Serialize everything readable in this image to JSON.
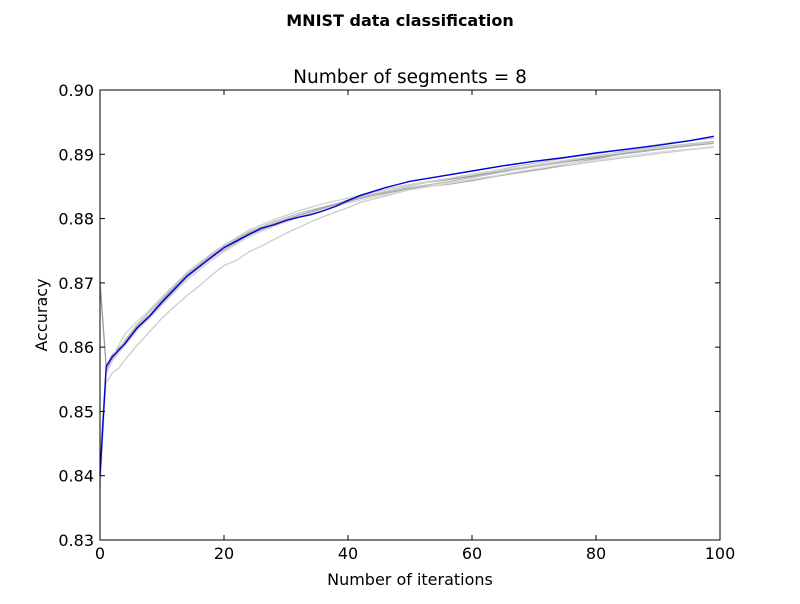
{
  "figure": {
    "suptitle": "MNIST data classification"
  },
  "chart_data": {
    "type": "line",
    "title": "Number of segments = 8",
    "xlabel": "Number of iterations",
    "ylabel": "Accuracy",
    "xlim": [
      0,
      100
    ],
    "ylim": [
      0.83,
      0.9
    ],
    "x_ticks": [
      0,
      20,
      40,
      60,
      80,
      100
    ],
    "y_ticks": [
      0.83,
      0.84,
      0.85,
      0.86,
      0.87,
      0.88,
      0.89,
      0.9
    ],
    "x_tick_labels": [
      "0",
      "20",
      "40",
      "60",
      "80",
      "100"
    ],
    "y_tick_labels": [
      "0.83",
      "0.84",
      "0.85",
      "0.86",
      "0.87",
      "0.88",
      "0.89",
      "0.90"
    ],
    "grid": false,
    "legend": "none",
    "series": [
      {
        "color": "#0000dd",
        "emphasis": "highlight",
        "points": [
          [
            0,
            0.84
          ],
          [
            1,
            0.857
          ],
          [
            2,
            0.8585
          ],
          [
            4,
            0.8605
          ],
          [
            6,
            0.863
          ],
          [
            8,
            0.8648
          ],
          [
            10,
            0.867
          ],
          [
            12,
            0.869
          ],
          [
            14,
            0.871
          ],
          [
            16,
            0.8725
          ],
          [
            18,
            0.874
          ],
          [
            20,
            0.8755
          ],
          [
            22,
            0.8765
          ],
          [
            24,
            0.8775
          ],
          [
            26,
            0.8785
          ],
          [
            28,
            0.879
          ],
          [
            30,
            0.8797
          ],
          [
            32,
            0.8802
          ],
          [
            34,
            0.8806
          ],
          [
            36,
            0.8812
          ],
          [
            38,
            0.8819
          ],
          [
            40,
            0.8828
          ],
          [
            42,
            0.8836
          ],
          [
            44,
            0.8842
          ],
          [
            46,
            0.8848
          ],
          [
            48,
            0.8853
          ],
          [
            50,
            0.8858
          ],
          [
            55,
            0.8866
          ],
          [
            60,
            0.8874
          ],
          [
            65,
            0.8882
          ],
          [
            70,
            0.8889
          ],
          [
            75,
            0.8895
          ],
          [
            80,
            0.8902
          ],
          [
            85,
            0.8908
          ],
          [
            90,
            0.8914
          ],
          [
            95,
            0.8921
          ],
          [
            99,
            0.8928
          ]
        ]
      },
      {
        "color": "#999999",
        "emphasis": "background",
        "points": [
          [
            0,
            0.87
          ],
          [
            1,
            0.857
          ],
          [
            2,
            0.8588
          ],
          [
            4,
            0.8608
          ],
          [
            6,
            0.8632
          ],
          [
            8,
            0.865
          ],
          [
            10,
            0.8672
          ],
          [
            12,
            0.8692
          ],
          [
            14,
            0.8712
          ],
          [
            16,
            0.8727
          ],
          [
            18,
            0.8742
          ],
          [
            20,
            0.8755
          ],
          [
            24,
            0.8777
          ],
          [
            28,
            0.8792
          ],
          [
            32,
            0.8805
          ],
          [
            36,
            0.8816
          ],
          [
            40,
            0.8829
          ],
          [
            44,
            0.8841
          ],
          [
            48,
            0.8849
          ],
          [
            50,
            0.8853
          ],
          [
            55,
            0.8859
          ],
          [
            60,
            0.8866
          ],
          [
            65,
            0.8874
          ],
          [
            70,
            0.8881
          ],
          [
            75,
            0.8888
          ],
          [
            80,
            0.8895
          ],
          [
            85,
            0.8902
          ],
          [
            90,
            0.8908
          ],
          [
            95,
            0.8914
          ],
          [
            99,
            0.8919
          ]
        ]
      },
      {
        "color": "#bbbbbb",
        "emphasis": "background",
        "points": [
          [
            0,
            0.84
          ],
          [
            1,
            0.856
          ],
          [
            2,
            0.858
          ],
          [
            4,
            0.861
          ],
          [
            6,
            0.8635
          ],
          [
            8,
            0.8655
          ],
          [
            10,
            0.8675
          ],
          [
            12,
            0.8695
          ],
          [
            14,
            0.8715
          ],
          [
            16,
            0.873
          ],
          [
            18,
            0.8745
          ],
          [
            20,
            0.8758
          ],
          [
            24,
            0.8779
          ],
          [
            28,
            0.8795
          ],
          [
            32,
            0.8808
          ],
          [
            36,
            0.8818
          ],
          [
            40,
            0.8828
          ],
          [
            44,
            0.8837
          ],
          [
            48,
            0.8845
          ],
          [
            52,
            0.8851
          ],
          [
            56,
            0.8857
          ],
          [
            60,
            0.8864
          ],
          [
            64,
            0.8871
          ],
          [
            68,
            0.8878
          ],
          [
            72,
            0.8884
          ],
          [
            76,
            0.8891
          ],
          [
            80,
            0.8897
          ],
          [
            84,
            0.8904
          ],
          [
            88,
            0.8909
          ],
          [
            92,
            0.8913
          ],
          [
            96,
            0.8917
          ],
          [
            99,
            0.892
          ]
        ]
      },
      {
        "color": "#cccccc",
        "emphasis": "background",
        "points": [
          [
            0,
            0.842
          ],
          [
            1,
            0.8545
          ],
          [
            2,
            0.856
          ],
          [
            3,
            0.8567
          ],
          [
            4,
            0.858
          ],
          [
            6,
            0.8603
          ],
          [
            8,
            0.8624
          ],
          [
            10,
            0.8645
          ],
          [
            12,
            0.8663
          ],
          [
            14,
            0.868
          ],
          [
            16,
            0.8695
          ],
          [
            18,
            0.8712
          ],
          [
            20,
            0.8727
          ],
          [
            22,
            0.8735
          ],
          [
            24,
            0.8748
          ],
          [
            26,
            0.8757
          ],
          [
            28,
            0.8767
          ],
          [
            30,
            0.8777
          ],
          [
            32,
            0.8786
          ],
          [
            34,
            0.8795
          ],
          [
            36,
            0.8803
          ],
          [
            38,
            0.881
          ],
          [
            40,
            0.8817
          ],
          [
            42,
            0.8825
          ],
          [
            44,
            0.883
          ],
          [
            46,
            0.8835
          ],
          [
            48,
            0.884
          ],
          [
            50,
            0.8845
          ],
          [
            55,
            0.8853
          ],
          [
            60,
            0.8861
          ],
          [
            65,
            0.8868
          ],
          [
            70,
            0.8875
          ],
          [
            75,
            0.8882
          ],
          [
            80,
            0.8889
          ],
          [
            85,
            0.8895
          ],
          [
            90,
            0.8901
          ],
          [
            95,
            0.8907
          ],
          [
            99,
            0.8911
          ]
        ]
      },
      {
        "color": "#c4c4c4",
        "emphasis": "background",
        "points": [
          [
            0,
            0.838
          ],
          [
            1,
            0.856
          ],
          [
            2,
            0.8582
          ],
          [
            4,
            0.8604
          ],
          [
            6,
            0.8628
          ],
          [
            8,
            0.8646
          ],
          [
            10,
            0.8666
          ],
          [
            12,
            0.8686
          ],
          [
            14,
            0.8705
          ],
          [
            16,
            0.8721
          ],
          [
            18,
            0.8736
          ],
          [
            20,
            0.8749
          ],
          [
            24,
            0.8772
          ],
          [
            28,
            0.8788
          ],
          [
            32,
            0.8802
          ],
          [
            36,
            0.8815
          ],
          [
            40,
            0.8826
          ],
          [
            44,
            0.8838
          ],
          [
            48,
            0.8846
          ],
          [
            52,
            0.8855
          ],
          [
            56,
            0.8862
          ],
          [
            60,
            0.8869
          ],
          [
            64,
            0.8875
          ],
          [
            68,
            0.8883
          ],
          [
            72,
            0.8889
          ],
          [
            76,
            0.8896
          ],
          [
            80,
            0.8901
          ],
          [
            84,
            0.8907
          ],
          [
            88,
            0.8912
          ],
          [
            92,
            0.8918
          ],
          [
            96,
            0.8922
          ],
          [
            99,
            0.8925
          ]
        ]
      },
      {
        "color": "#d0d0d0",
        "emphasis": "background",
        "points": [
          [
            0,
            0.843
          ],
          [
            1,
            0.8565
          ],
          [
            2,
            0.8585
          ],
          [
            4,
            0.862
          ],
          [
            6,
            0.864
          ],
          [
            8,
            0.8658
          ],
          [
            10,
            0.8678
          ],
          [
            12,
            0.8697
          ],
          [
            14,
            0.8716
          ],
          [
            16,
            0.8731
          ],
          [
            18,
            0.8746
          ],
          [
            20,
            0.8759
          ],
          [
            24,
            0.8782
          ],
          [
            28,
            0.8798
          ],
          [
            32,
            0.8812
          ],
          [
            36,
            0.8823
          ],
          [
            40,
            0.8832
          ],
          [
            44,
            0.8841
          ],
          [
            48,
            0.8849
          ],
          [
            52,
            0.8856
          ],
          [
            56,
            0.8862
          ],
          [
            60,
            0.8868
          ],
          [
            64,
            0.8874
          ],
          [
            68,
            0.888
          ],
          [
            72,
            0.8886
          ],
          [
            76,
            0.8892
          ],
          [
            80,
            0.8898
          ],
          [
            84,
            0.8903
          ],
          [
            88,
            0.8908
          ],
          [
            92,
            0.8912
          ],
          [
            96,
            0.8916
          ],
          [
            99,
            0.8918
          ]
        ]
      },
      {
        "color": "#aaaaaa",
        "emphasis": "background",
        "points": [
          [
            0,
            0.841
          ],
          [
            1,
            0.8565
          ],
          [
            2,
            0.8583
          ],
          [
            4,
            0.8606
          ],
          [
            6,
            0.863
          ],
          [
            8,
            0.8649
          ],
          [
            10,
            0.8669
          ],
          [
            12,
            0.8689
          ],
          [
            14,
            0.8709
          ],
          [
            16,
            0.8725
          ],
          [
            18,
            0.874
          ],
          [
            20,
            0.8752
          ],
          [
            24,
            0.8775
          ],
          [
            28,
            0.879
          ],
          [
            32,
            0.8804
          ],
          [
            36,
            0.8817
          ],
          [
            40,
            0.8827
          ],
          [
            44,
            0.8836
          ],
          [
            48,
            0.8843
          ],
          [
            52,
            0.8849
          ],
          [
            56,
            0.8853
          ],
          [
            60,
            0.8859
          ],
          [
            64,
            0.8866
          ],
          [
            68,
            0.8872
          ],
          [
            72,
            0.8878
          ],
          [
            76,
            0.8886
          ],
          [
            80,
            0.8893
          ],
          [
            84,
            0.89
          ],
          [
            88,
            0.8905
          ],
          [
            92,
            0.891
          ],
          [
            96,
            0.8914
          ],
          [
            99,
            0.8917
          ]
        ]
      },
      {
        "color": "#d8d8d8",
        "emphasis": "background",
        "points": [
          [
            0,
            0.839
          ],
          [
            1,
            0.8558
          ],
          [
            2,
            0.8579
          ],
          [
            4,
            0.8602
          ],
          [
            6,
            0.8626
          ],
          [
            8,
            0.8645
          ],
          [
            10,
            0.8665
          ],
          [
            12,
            0.8685
          ],
          [
            14,
            0.8704
          ],
          [
            16,
            0.872
          ],
          [
            18,
            0.8735
          ],
          [
            20,
            0.8748
          ],
          [
            24,
            0.8772
          ],
          [
            28,
            0.8789
          ],
          [
            32,
            0.8803
          ],
          [
            36,
            0.8814
          ],
          [
            40,
            0.8824
          ],
          [
            44,
            0.8833
          ],
          [
            48,
            0.8841
          ],
          [
            52,
            0.8848
          ],
          [
            56,
            0.8854
          ],
          [
            60,
            0.8861
          ],
          [
            64,
            0.8867
          ],
          [
            68,
            0.8874
          ],
          [
            72,
            0.888
          ],
          [
            76,
            0.8886
          ],
          [
            80,
            0.8891
          ],
          [
            84,
            0.8896
          ],
          [
            88,
            0.8901
          ],
          [
            92,
            0.8905
          ],
          [
            96,
            0.8909
          ],
          [
            99,
            0.8912
          ]
        ]
      }
    ]
  }
}
